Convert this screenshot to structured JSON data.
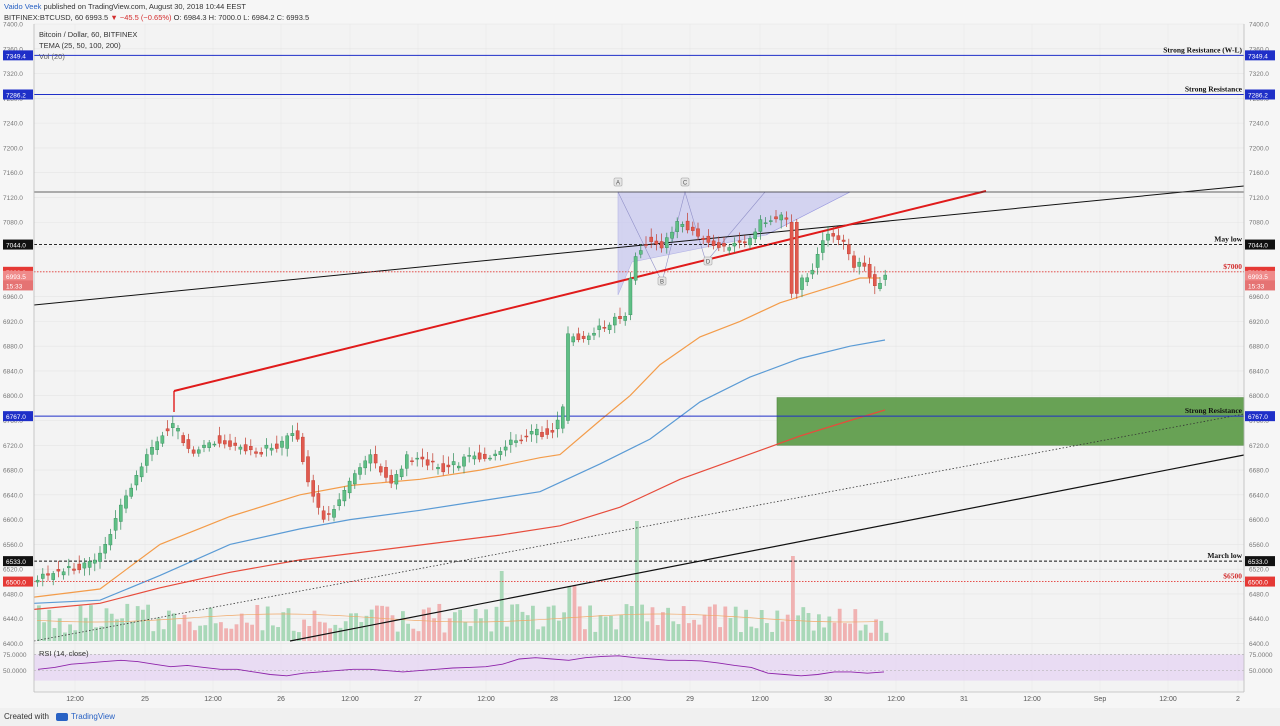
{
  "header": {
    "author": "Vaido Veek",
    "published_text": "published on TradingView.com, August 30, 2018 10:44 EEST",
    "symbol": "BITFINEX:BTCUSD, 60",
    "last": "6993.5",
    "change": "▼ −45.5 (−0.65%)",
    "ohlc": "O: 6984.3  H: 7000.0  L: 6984.2  C: 6993.5"
  },
  "legend": {
    "pair": "Bitcoin / Dollar, 60, BITFINEX",
    "tema": "TEMA (25, 50, 100, 200)",
    "vol": "Vol (20)"
  },
  "rsi_label": "RSI (14, close)",
  "footer": {
    "created_with": "Created with",
    "brand": "TradingView"
  },
  "colors": {
    "blue_level": "#1f2fc8",
    "red_label": "#e53935",
    "black_label": "#111111",
    "green_zone": "#5a9a44",
    "candle_up": "#2e8b57",
    "candle_down": "#c0392b"
  },
  "chart_data": {
    "type": "candlestick",
    "title": "Bitcoin / Dollar, 60, BITFINEX",
    "ylim": [
      6396,
      7400
    ],
    "y_ticks": [
      "7400.0",
      "7360.0",
      "7320.0",
      "7280.0",
      "7240.0",
      "7200.0",
      "7160.0",
      "7120.0",
      "7080.0",
      "7040.0",
      "7000.0",
      "6960.0",
      "6920.0",
      "6880.0",
      "6840.0",
      "6800.0",
      "6760.0",
      "6720.0",
      "6680.0",
      "6640.0",
      "6600.0",
      "6560.0",
      "6520.0",
      "6480.0",
      "6440.0",
      "6400.0"
    ],
    "x_ticks": [
      "12:00",
      "25",
      "12:00",
      "26",
      "12:00",
      "27",
      "12:00",
      "28",
      "12:00",
      "29",
      "12:00",
      "30",
      "12:00",
      "31",
      "12:00",
      "Sep",
      "12:00",
      "2"
    ],
    "levels": [
      {
        "label": "Strong Resistance (W-L)",
        "price_tag": "7349.4",
        "value": 7349.4,
        "style": "blue"
      },
      {
        "label": "Strong Resistance",
        "price_tag": "7286.2",
        "value": 7286.2,
        "style": "blue"
      },
      {
        "label": "May low",
        "price_tag": "7044.0",
        "value": 7044.0,
        "style": "black-dashed"
      },
      {
        "label": "$7000",
        "price_tag": "7000.0",
        "value": 7000.0,
        "style": "red-dotted"
      },
      {
        "label": "Strong Resistance",
        "price_tag": "6767.0",
        "value": 6767.0,
        "style": "blue"
      },
      {
        "label": "March low",
        "price_tag": "6533.0",
        "value": 6533.0,
        "style": "black-dashed"
      },
      {
        "label": "$6500",
        "price_tag": "6500.0",
        "value": 6500.0,
        "style": "red-dotted"
      }
    ],
    "price_tags_extra": [
      {
        "text": "6993.5",
        "value": 6993.5,
        "color": "#ef8a8a"
      },
      {
        "text": "15:33",
        "value": 6978,
        "color": "#e57373"
      }
    ],
    "pattern_labels": [
      "A",
      "B",
      "C",
      "D"
    ],
    "rsi_ticks": [
      "75.0000",
      "50.0000"
    ]
  }
}
